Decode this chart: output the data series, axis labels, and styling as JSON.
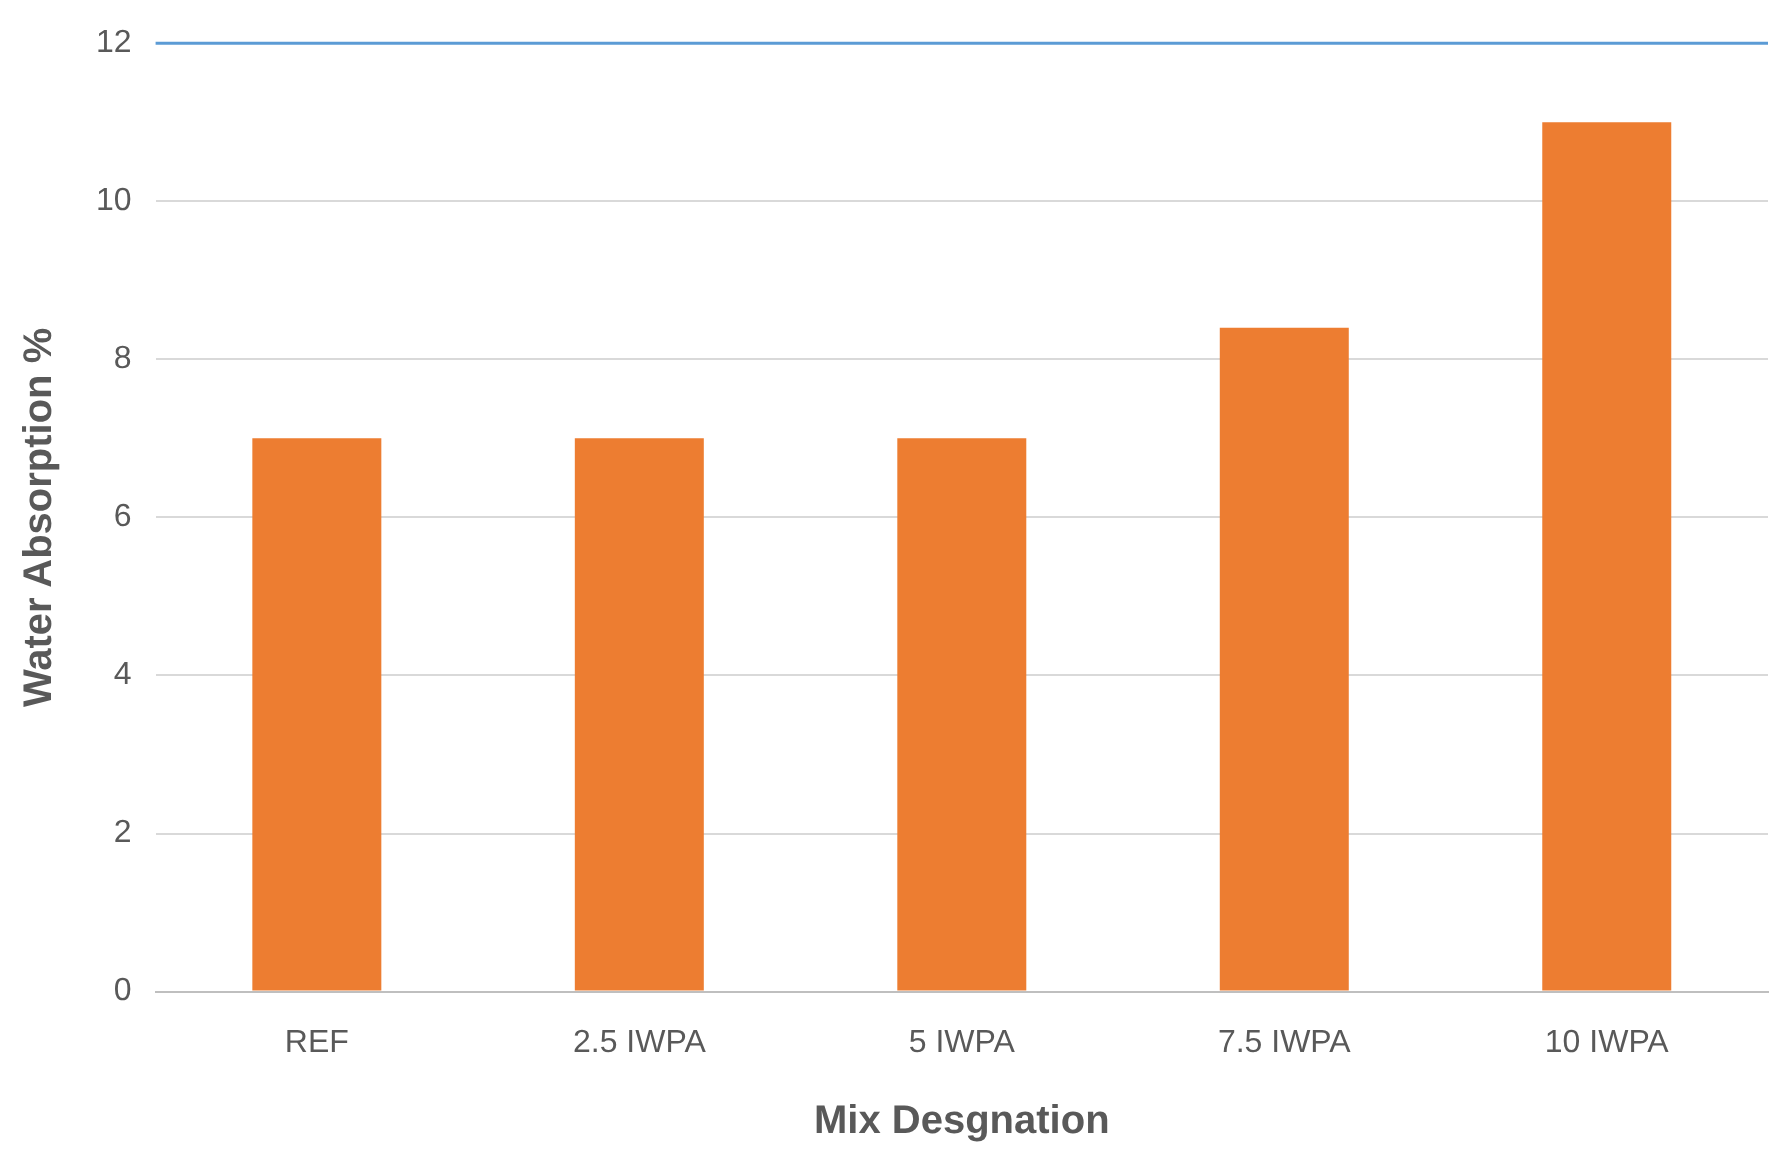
{
  "chart_data": {
    "type": "bar",
    "xlabel": "Mix Desgnation",
    "ylabel": "Water Absorption %",
    "categories": [
      "REF",
      "2.5 IWPA",
      "5 IWPA",
      "7.5 IWPA",
      "10 IWPA"
    ],
    "values": [
      7,
      7,
      7,
      8.4,
      11
    ],
    "color": "#ed7d31",
    "ylim": [
      0,
      12
    ],
    "yticks": [
      0,
      2,
      4,
      6,
      8,
      10,
      12
    ],
    "grid": "y",
    "ref_lines": [
      {
        "axis": "y",
        "value": 12,
        "color": "#5b9bd5"
      }
    ]
  }
}
